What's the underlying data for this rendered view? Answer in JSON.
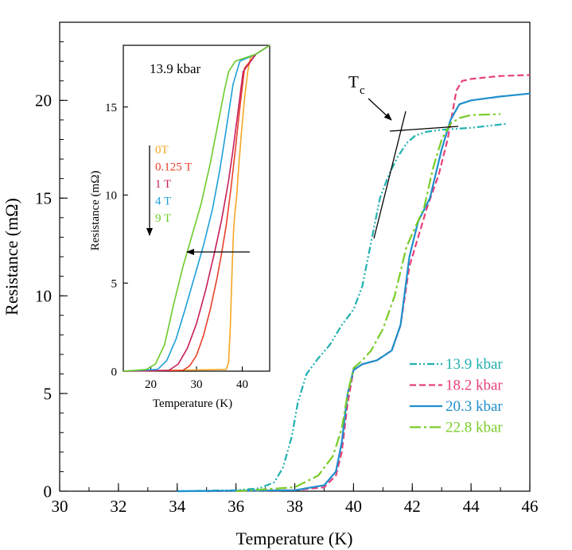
{
  "chart_data": [
    {
      "id": "main",
      "type": "line",
      "xlabel": "Temperature (K)",
      "ylabel": "Resistance (mΩ)",
      "xlim": [
        30,
        46
      ],
      "ylim": [
        0,
        24
      ],
      "xticks": [
        "30",
        "32",
        "34",
        "36",
        "38",
        "40",
        "42",
        "44",
        "46"
      ],
      "yticks": [
        "0",
        "5",
        "10",
        "15",
        "20"
      ],
      "legend_position": "bottom-right",
      "annotation": {
        "label": "T",
        "subscript": "c"
      },
      "series": [
        {
          "name": "13.9 kbar",
          "color": "#20b0b0",
          "dash": "dash-dot-dot",
          "x": [
            34.0,
            36.0,
            36.8,
            37.3,
            37.6,
            37.9,
            38.1,
            38.4,
            38.8,
            39.2,
            39.6,
            40.0,
            40.3,
            40.5,
            40.7,
            40.9,
            41.2,
            41.5,
            41.8,
            42.1,
            42.5,
            43.0,
            44.0,
            45.2
          ],
          "y": [
            0.0,
            0.05,
            0.15,
            0.45,
            1.2,
            2.8,
            4.5,
            6.0,
            6.8,
            7.5,
            8.5,
            9.3,
            10.5,
            12.0,
            13.5,
            15.0,
            16.2,
            17.1,
            17.8,
            18.2,
            18.4,
            18.5,
            18.6,
            18.8
          ]
        },
        {
          "name": "18.2 kbar",
          "color": "#e8407a",
          "dash": "dashed",
          "x": [
            35.0,
            38.0,
            39.0,
            39.4,
            39.6,
            39.8,
            40.0,
            40.3,
            40.8,
            41.3,
            41.6,
            41.9,
            42.2,
            42.5,
            42.9,
            43.2,
            43.5,
            43.7,
            44.0,
            45.0,
            46.0
          ],
          "y": [
            0.0,
            0.05,
            0.2,
            0.8,
            2.0,
            4.5,
            6.2,
            6.5,
            6.7,
            7.2,
            8.5,
            11.5,
            13.0,
            14.5,
            16.2,
            18.0,
            20.5,
            21.0,
            21.1,
            21.25,
            21.3
          ]
        },
        {
          "name": "20.3 kbar",
          "color": "#1e8fcc",
          "dash": "solid",
          "x": [
            34.0,
            38.0,
            39.0,
            39.4,
            39.6,
            39.8,
            40.0,
            40.3,
            40.8,
            41.3,
            41.6,
            41.9,
            42.2,
            42.6,
            43.0,
            43.3,
            43.6,
            44.0,
            45.0,
            46.0
          ],
          "y": [
            0.0,
            0.05,
            0.3,
            1.0,
            2.5,
            5.0,
            6.2,
            6.5,
            6.7,
            7.2,
            8.5,
            12.0,
            13.8,
            15.0,
            17.5,
            19.0,
            19.8,
            20.0,
            20.2,
            20.35
          ]
        },
        {
          "name": "22.8 kbar",
          "color": "#7acc28",
          "dash": "long-dash-dot",
          "x": [
            36.0,
            38.0,
            38.8,
            39.3,
            39.6,
            39.8,
            40.0,
            40.3,
            40.6,
            41.0,
            41.4,
            41.8,
            42.1,
            42.4,
            42.7,
            43.0,
            43.3,
            43.6,
            44.0,
            45.0
          ],
          "y": [
            0.0,
            0.2,
            0.8,
            1.8,
            3.2,
            5.0,
            6.3,
            6.7,
            7.2,
            8.3,
            10.0,
            12.5,
            13.5,
            14.5,
            16.5,
            18.0,
            18.8,
            19.1,
            19.25,
            19.3
          ]
        }
      ]
    },
    {
      "id": "inset",
      "type": "line",
      "title": "13.9 kbar",
      "xlabel": "Temperature (K)",
      "ylabel": "Resistance (mΩ)",
      "xlim": [
        14,
        46
      ],
      "ylim": [
        0,
        18.5
      ],
      "xticks": [
        "20",
        "30",
        "40"
      ],
      "yticks": [
        "0",
        "5",
        "10",
        "15"
      ],
      "legend_position": "left",
      "series": [
        {
          "name": "0T",
          "color": "#f5a623",
          "x": [
            14,
            36.5,
            37.0,
            37.4,
            37.8,
            38.1,
            38.4,
            38.8,
            39.2,
            39.8,
            40.5,
            41.2,
            41.8,
            43.0,
            46.0
          ],
          "y": [
            0,
            0.1,
            0.5,
            2.5,
            6.0,
            8.0,
            9.0,
            10.0,
            11.5,
            13.5,
            15.5,
            17.0,
            17.8,
            18.0,
            18.5
          ]
        },
        {
          "name": "0.125 T",
          "color": "#e8402a",
          "x": [
            14,
            27.0,
            28.5,
            30.0,
            31.5,
            33.0,
            34.5,
            35.5,
            36.5,
            37.5,
            38.5,
            39.5,
            40.5,
            43.0,
            46.0
          ],
          "y": [
            0,
            0.05,
            0.3,
            0.9,
            2.0,
            3.5,
            5.3,
            6.7,
            8.3,
            10.3,
            12.6,
            15.0,
            17.2,
            18.0,
            18.5
          ]
        },
        {
          "name": "1 T",
          "color": "#c81e5a",
          "x": [
            14,
            24.0,
            26.0,
            28.0,
            30.0,
            32.0,
            34.0,
            35.5,
            37.0,
            38.0,
            39.0,
            40.2,
            43.0,
            46.0
          ],
          "y": [
            0,
            0.05,
            0.4,
            1.3,
            2.7,
            4.6,
            6.8,
            8.6,
            10.8,
            12.6,
            14.6,
            17.0,
            18.0,
            18.5
          ]
        },
        {
          "name": "4 T",
          "color": "#1e9fd8",
          "x": [
            14,
            21.5,
            23.5,
            25.5,
            27.5,
            29.5,
            31.5,
            33.5,
            35.0,
            36.0,
            37.0,
            38.0,
            39.5,
            43.0,
            46.0
          ],
          "y": [
            0,
            0.1,
            0.6,
            1.8,
            3.5,
            5.3,
            7.1,
            9.2,
            11.3,
            12.9,
            14.6,
            16.3,
            17.6,
            18.0,
            18.5
          ]
        },
        {
          "name": "9 T",
          "color": "#6ccc2a",
          "x": [
            14,
            19.0,
            21.0,
            23.0,
            25.0,
            27.0,
            29.0,
            31.0,
            33.0,
            34.5,
            36.0,
            37.0,
            38.5,
            43.0,
            46.0
          ],
          "y": [
            0,
            0.1,
            0.4,
            1.5,
            3.8,
            5.9,
            7.7,
            9.5,
            11.8,
            13.8,
            15.8,
            17.0,
            17.6,
            18.0,
            18.5
          ]
        }
      ]
    }
  ]
}
